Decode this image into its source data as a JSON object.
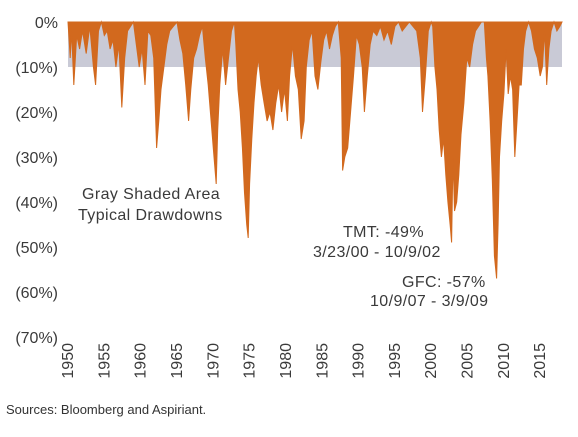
{
  "chart_data": {
    "type": "area",
    "title": "",
    "xlabel": "",
    "ylabel": "",
    "x_range": [
      1950,
      2018
    ],
    "ylim": [
      -70,
      0
    ],
    "y_ticks": [
      "0%",
      "(10%)",
      "(20%)",
      "(30%)",
      "(40%)",
      "(50%)",
      "(60%)",
      "(70%)"
    ],
    "y_tick_values": [
      0,
      -10,
      -20,
      -30,
      -40,
      -50,
      -60,
      -70
    ],
    "x_ticks": [
      "1950",
      "1955",
      "1960",
      "1965",
      "1970",
      "1975",
      "1980",
      "1985",
      "1990",
      "1995",
      "2000",
      "2005",
      "2010",
      "2015"
    ],
    "x_tick_values": [
      1950,
      1955,
      1960,
      1965,
      1970,
      1975,
      1980,
      1985,
      1990,
      1995,
      2000,
      2005,
      2010,
      2015
    ],
    "band": {
      "from": 0,
      "to": -10,
      "color": "#c9cad6"
    },
    "series": [
      {
        "color": "#d2691e",
        "x": [
          1950.0,
          1950.3,
          1950.5,
          1950.8,
          1951.2,
          1951.6,
          1952.0,
          1952.5,
          1953.0,
          1953.5,
          1953.8,
          1954.2,
          1954.6,
          1955.0,
          1955.4,
          1955.8,
          1956.2,
          1956.6,
          1957.0,
          1957.4,
          1957.8,
          1958.2,
          1958.6,
          1959.0,
          1959.4,
          1959.8,
          1960.2,
          1960.6,
          1961.0,
          1961.4,
          1961.8,
          1962.2,
          1962.5,
          1962.8,
          1963.2,
          1963.6,
          1964.0,
          1964.5,
          1965.0,
          1965.4,
          1965.8,
          1966.2,
          1966.6,
          1966.9,
          1967.3,
          1967.7,
          1968.1,
          1968.5,
          1968.9,
          1969.3,
          1969.7,
          1970.1,
          1970.4,
          1970.6,
          1970.9,
          1971.3,
          1971.7,
          1972.1,
          1972.5,
          1972.9,
          1973.1,
          1973.4,
          1973.7,
          1974.0,
          1974.3,
          1974.6,
          1974.8,
          1975.0,
          1975.3,
          1975.6,
          1975.9,
          1976.2,
          1976.6,
          1977.0,
          1977.4,
          1977.8,
          1978.2,
          1978.6,
          1979.0,
          1979.4,
          1979.8,
          1980.2,
          1980.5,
          1980.9,
          1981.3,
          1981.7,
          1982.1,
          1982.5,
          1982.8,
          1983.2,
          1983.6,
          1984.0,
          1984.4,
          1984.8,
          1985.2,
          1985.6,
          1986.0,
          1986.4,
          1986.8,
          1987.2,
          1987.6,
          1987.8,
          1988.1,
          1988.5,
          1988.9,
          1989.3,
          1989.7,
          1990.1,
          1990.5,
          1990.8,
          1991.2,
          1991.6,
          1992.0,
          1992.5,
          1993.0,
          1993.5,
          1994.0,
          1994.5,
          1995.0,
          1995.5,
          1996.0,
          1996.5,
          1997.0,
          1997.5,
          1998.0,
          1998.5,
          1998.8,
          1999.2,
          1999.6,
          2000.0,
          2000.2,
          2000.5,
          2000.8,
          2001.1,
          2001.4,
          2001.7,
          2002.0,
          2002.3,
          2002.6,
          2002.8,
          2003.0,
          2003.2,
          2003.5,
          2003.8,
          2004.1,
          2004.5,
          2004.9,
          2005.3,
          2005.7,
          2006.1,
          2006.5,
          2006.9,
          2007.3,
          2007.6,
          2007.8,
          2008.1,
          2008.4,
          2008.7,
          2009.0,
          2009.2,
          2009.4,
          2009.7,
          2010.0,
          2010.3,
          2010.6,
          2010.9,
          2011.2,
          2011.5,
          2011.8,
          2012.1,
          2012.4,
          2012.7,
          2013.0,
          2013.4,
          2013.8,
          2014.2,
          2014.6,
          2015.0,
          2015.3,
          2015.6,
          2015.9,
          2016.2,
          2016.5,
          2016.9,
          2017.3,
          2017.7,
          2018.0
        ],
        "y": [
          0,
          -8,
          -2,
          -14,
          -3,
          -6,
          -2,
          -7,
          -1,
          -10,
          -14,
          -2,
          0,
          -3,
          -2,
          -6,
          -4,
          -10,
          -5,
          -19,
          -8,
          -2,
          -1,
          0,
          -5,
          -10,
          -6,
          -14,
          -2,
          -3,
          -8,
          -28,
          -22,
          -15,
          -10,
          -5,
          -2,
          -1,
          0,
          -4,
          -7,
          -14,
          -22,
          -15,
          -8,
          -6,
          -3,
          -1,
          -8,
          -14,
          -22,
          -30,
          -36,
          -24,
          -14,
          -6,
          -14,
          -8,
          -2,
          0,
          -5,
          -15,
          -20,
          -28,
          -38,
          -45,
          -48,
          -36,
          -26,
          -18,
          -12,
          -8,
          -14,
          -18,
          -22,
          -20,
          -24,
          -18,
          -14,
          -20,
          -15,
          -22,
          -12,
          -5,
          -12,
          -15,
          -26,
          -22,
          -10,
          -4,
          -2,
          -12,
          -15,
          -9,
          -4,
          -2,
          -6,
          -3,
          -1,
          0,
          -8,
          -33,
          -30,
          -28,
          -20,
          -12,
          -3,
          -5,
          -10,
          -20,
          -12,
          -5,
          -2,
          -3,
          -1,
          -4,
          -2,
          -5,
          -1,
          0,
          -2,
          -1,
          0,
          -1,
          -2,
          -8,
          -20,
          -12,
          -2,
          0,
          -1,
          -10,
          -15,
          -24,
          -30,
          -26,
          -34,
          -40,
          -45,
          -49,
          -30,
          -42,
          -40,
          -34,
          -25,
          -18,
          -8,
          -10,
          -5,
          -2,
          -1,
          0,
          0,
          -8,
          -12,
          -22,
          -35,
          -52,
          -57,
          -45,
          -30,
          -22,
          -16,
          -6,
          -16,
          -12,
          -15,
          -30,
          -22,
          -14,
          -14,
          -6,
          -2,
          0,
          -2,
          -6,
          -8,
          -12,
          -10,
          -2,
          -14,
          -6,
          -2,
          0,
          -2,
          -1,
          0
        ]
      }
    ],
    "annotations": [
      {
        "lines": [
          "Gray Shaded Area",
          "Typical Drawdowns"
        ]
      },
      {
        "lines": [
          "TMT: -49%",
          "3/23/00  -  10/9/02"
        ]
      },
      {
        "lines": [
          "GFC: -57%",
          "10/9/07  -  3/9/09"
        ]
      }
    ],
    "source": "Sources: Bloomberg and Aspiriant."
  }
}
